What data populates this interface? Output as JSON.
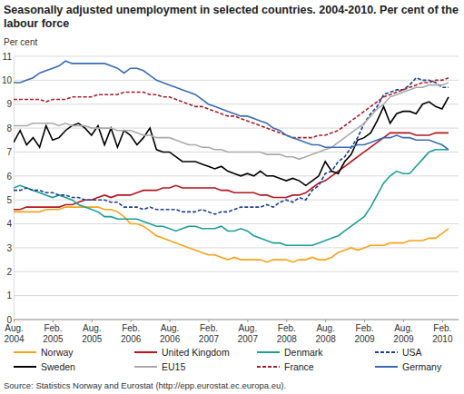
{
  "chart_data": {
    "type": "line",
    "title": "Seasonally adjusted unemployment in selected countries. 2004-2010. Per cent of the labour force",
    "y_label": "Per cent",
    "source": "Source: Statistics Norway and Eurostat (http://epp.eurostat.ec.europa.eu).",
    "categories": [
      "Aug. 2004",
      null,
      null,
      null,
      null,
      null,
      "Feb. 2005",
      null,
      null,
      null,
      null,
      null,
      "Aug. 2005",
      null,
      null,
      null,
      null,
      null,
      "Feb. 2006",
      null,
      null,
      null,
      null,
      null,
      "Aug. 2006",
      null,
      null,
      null,
      null,
      null,
      "Feb. 2007",
      null,
      null,
      null,
      null,
      null,
      "Aug. 2007",
      null,
      null,
      null,
      null,
      null,
      "Feb. 2008",
      null,
      null,
      null,
      null,
      null,
      "Aug. 2008",
      null,
      null,
      null,
      null,
      null,
      "Feb. 2009",
      null,
      null,
      null,
      null,
      null,
      "Aug. 2009",
      null,
      null,
      null,
      null,
      null,
      "Feb. 2010",
      null
    ],
    "ylim": [
      0,
      11
    ],
    "yticks": [
      0,
      1,
      2,
      3,
      4,
      5,
      6,
      7,
      8,
      9,
      10,
      11
    ],
    "grid": true,
    "legend": "bottom",
    "series": [
      {
        "name": "Norway",
        "color": "#f5a31a",
        "line_style": "solid",
        "values": [
          4.5,
          4.5,
          4.5,
          4.5,
          4.5,
          4.6,
          4.6,
          4.6,
          4.7,
          4.7,
          4.7,
          4.7,
          4.7,
          4.7,
          4.6,
          4.6,
          4.5,
          4.3,
          4.0,
          4.0,
          3.9,
          3.7,
          3.5,
          3.4,
          3.3,
          3.2,
          3.1,
          3.0,
          2.9,
          2.8,
          2.7,
          2.7,
          2.6,
          2.5,
          2.6,
          2.5,
          2.5,
          2.5,
          2.5,
          2.4,
          2.5,
          2.5,
          2.5,
          2.4,
          2.5,
          2.5,
          2.6,
          2.5,
          2.5,
          2.6,
          2.8,
          2.9,
          3.0,
          2.9,
          3.0,
          3.1,
          3.1,
          3.1,
          3.2,
          3.2,
          3.2,
          3.3,
          3.3,
          3.3,
          3.4,
          3.4,
          3.6,
          3.8
        ]
      },
      {
        "name": "United Kingdom",
        "color": "#b3161f",
        "line_style": "solid",
        "values": [
          4.6,
          4.6,
          4.7,
          4.7,
          4.7,
          4.7,
          4.7,
          4.7,
          4.8,
          4.8,
          4.9,
          5.0,
          5.0,
          5.1,
          5.2,
          5.1,
          5.2,
          5.2,
          5.2,
          5.3,
          5.4,
          5.4,
          5.4,
          5.5,
          5.5,
          5.6,
          5.5,
          5.5,
          5.5,
          5.5,
          5.5,
          5.5,
          5.4,
          5.4,
          5.3,
          5.3,
          5.3,
          5.3,
          5.2,
          5.2,
          5.1,
          5.1,
          5.1,
          5.2,
          5.2,
          5.3,
          5.5,
          5.7,
          5.8,
          6.0,
          6.2,
          6.4,
          6.6,
          6.8,
          7.0,
          7.2,
          7.4,
          7.6,
          7.8,
          7.8,
          7.8,
          7.8,
          7.7,
          7.7,
          7.7,
          7.8,
          7.8,
          7.8
        ]
      },
      {
        "name": "Denmark",
        "color": "#1b9e97",
        "line_style": "solid",
        "values": [
          5.5,
          5.6,
          5.5,
          5.4,
          5.3,
          5.2,
          5.1,
          5.2,
          5.1,
          5.0,
          4.8,
          4.7,
          4.6,
          4.5,
          4.3,
          4.3,
          4.2,
          4.2,
          4.2,
          4.2,
          4.1,
          4.0,
          3.9,
          3.9,
          3.8,
          3.7,
          3.8,
          3.9,
          3.9,
          3.8,
          3.8,
          3.8,
          3.9,
          3.7,
          3.7,
          3.8,
          3.7,
          3.5,
          3.4,
          3.3,
          3.2,
          3.2,
          3.1,
          3.1,
          3.1,
          3.1,
          3.1,
          3.2,
          3.3,
          3.4,
          3.5,
          3.7,
          3.9,
          4.1,
          4.3,
          4.7,
          5.2,
          5.7,
          6.0,
          6.2,
          6.1,
          6.1,
          6.4,
          6.7,
          7.0,
          7.1,
          7.1,
          7.1
        ]
      },
      {
        "name": "USA",
        "color": "#1f3f8f",
        "line_style": "dashed",
        "values": [
          5.4,
          5.4,
          5.5,
          5.4,
          5.4,
          5.3,
          5.3,
          5.2,
          5.2,
          5.1,
          5.1,
          5.0,
          5.0,
          5.0,
          5.0,
          4.9,
          4.9,
          4.7,
          4.7,
          4.7,
          4.6,
          4.7,
          4.6,
          4.6,
          4.6,
          4.6,
          4.5,
          4.5,
          4.5,
          4.6,
          4.5,
          4.4,
          4.5,
          4.5,
          4.6,
          4.7,
          4.7,
          4.7,
          4.7,
          4.8,
          4.7,
          4.9,
          5.0,
          4.9,
          5.1,
          5.0,
          5.4,
          5.6,
          6.1,
          6.2,
          6.6,
          6.8,
          7.2,
          7.6,
          8.2,
          8.6,
          8.9,
          9.4,
          9.5,
          9.6,
          9.6,
          9.8,
          10.1,
          10.0,
          10.0,
          9.9,
          9.7,
          9.7
        ]
      },
      {
        "name": "Sweden",
        "color": "#000000",
        "line_style": "solid",
        "values": [
          7.4,
          7.9,
          7.3,
          7.6,
          7.2,
          8.1,
          7.5,
          7.6,
          7.9,
          8.1,
          8.2,
          8.0,
          7.7,
          8.1,
          7.3,
          8.0,
          7.2,
          7.9,
          7.7,
          7.3,
          7.6,
          8.0,
          7.1,
          7.0,
          7.0,
          6.8,
          6.6,
          6.6,
          6.6,
          6.5,
          6.4,
          6.3,
          6.4,
          6.2,
          6.1,
          6.0,
          6.1,
          6.0,
          6.2,
          6.0,
          6.0,
          5.9,
          5.8,
          5.9,
          5.8,
          5.6,
          5.8,
          6.0,
          6.6,
          6.2,
          6.1,
          6.6,
          6.9,
          7.5,
          7.6,
          7.8,
          8.3,
          8.9,
          8.2,
          8.6,
          8.7,
          8.7,
          8.6,
          9.0,
          9.1,
          8.9,
          8.8,
          9.3
        ]
      },
      {
        "name": "EU15",
        "color": "#aaaaaa",
        "line_style": "solid",
        "values": [
          8.1,
          8.1,
          8.1,
          8.2,
          8.2,
          8.2,
          8.2,
          8.1,
          8.2,
          8.1,
          8.1,
          8.1,
          8.0,
          8.0,
          8.0,
          8.0,
          7.9,
          7.9,
          7.9,
          7.8,
          7.7,
          7.7,
          7.6,
          7.6,
          7.6,
          7.5,
          7.4,
          7.3,
          7.3,
          7.2,
          7.2,
          7.1,
          7.1,
          7.0,
          7.0,
          7.0,
          7.0,
          7.0,
          7.0,
          6.9,
          6.9,
          6.9,
          6.8,
          6.8,
          6.7,
          6.8,
          6.9,
          7.0,
          7.1,
          7.2,
          7.4,
          7.6,
          7.8,
          8.0,
          8.2,
          8.5,
          8.8,
          9.0,
          9.3,
          9.4,
          9.5,
          9.6,
          9.7,
          9.7,
          9.8,
          9.8,
          9.8,
          9.9
        ]
      },
      {
        "name": "France",
        "color": "#a3202e",
        "line_style": "dashed",
        "values": [
          9.2,
          9.2,
          9.2,
          9.2,
          9.2,
          9.1,
          9.2,
          9.2,
          9.2,
          9.3,
          9.3,
          9.3,
          9.3,
          9.4,
          9.4,
          9.4,
          9.4,
          9.5,
          9.5,
          9.5,
          9.5,
          9.4,
          9.4,
          9.3,
          9.3,
          9.2,
          9.1,
          9.0,
          8.9,
          8.9,
          8.8,
          8.7,
          8.6,
          8.5,
          8.5,
          8.4,
          8.3,
          8.2,
          8.1,
          8.0,
          7.9,
          7.8,
          7.7,
          7.6,
          7.6,
          7.6,
          7.6,
          7.7,
          7.7,
          7.8,
          7.9,
          8.1,
          8.3,
          8.5,
          8.7,
          8.9,
          9.1,
          9.3,
          9.4,
          9.5,
          9.6,
          9.7,
          9.8,
          9.9,
          9.9,
          10.0,
          10.0,
          10.1
        ]
      },
      {
        "name": "Germany",
        "color": "#3b6cb3",
        "line_style": "solid",
        "values": [
          9.9,
          9.9,
          10.0,
          10.1,
          10.3,
          10.4,
          10.5,
          10.6,
          10.8,
          10.7,
          10.7,
          10.7,
          10.7,
          10.7,
          10.7,
          10.6,
          10.5,
          10.3,
          10.5,
          10.5,
          10.4,
          10.2,
          10.0,
          9.9,
          9.8,
          9.7,
          9.6,
          9.5,
          9.4,
          9.2,
          9.0,
          8.9,
          8.8,
          8.7,
          8.6,
          8.5,
          8.5,
          8.4,
          8.3,
          8.2,
          8.0,
          7.9,
          7.7,
          7.6,
          7.5,
          7.4,
          7.3,
          7.3,
          7.2,
          7.2,
          7.2,
          7.2,
          7.2,
          7.3,
          7.3,
          7.4,
          7.5,
          7.6,
          7.6,
          7.7,
          7.6,
          7.6,
          7.5,
          7.5,
          7.5,
          7.4,
          7.3,
          7.1
        ]
      }
    ]
  }
}
